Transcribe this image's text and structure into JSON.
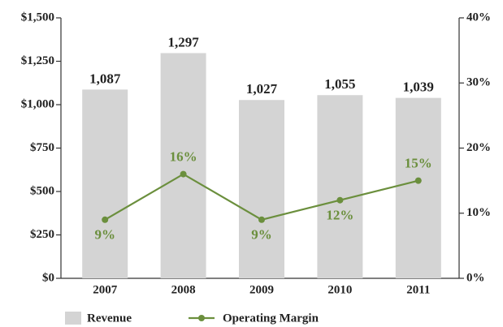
{
  "chart_data": {
    "type": "bar",
    "categories": [
      "2007",
      "2008",
      "2009",
      "2010",
      "2011"
    ],
    "series": [
      {
        "name": "Revenue",
        "color": "#d4d4d4",
        "values": [
          1087,
          1297,
          1027,
          1055,
          1039
        ],
        "value_labels": [
          "1,087",
          "1,297",
          "1,027",
          "1,055",
          "1,039"
        ]
      },
      {
        "name": "Operating Margin",
        "type": "line",
        "axis": "y2",
        "color": "#6b8f3d",
        "values": [
          9,
          16,
          9,
          12,
          15
        ],
        "value_labels": [
          "9%",
          "16%",
          "9%",
          "12%",
          "15%"
        ]
      }
    ],
    "ylim": [
      0,
      1500
    ],
    "yticks": [
      {
        "value": 0,
        "label": "$0"
      },
      {
        "value": 250,
        "label": "$250"
      },
      {
        "value": 500,
        "label": "$500"
      },
      {
        "value": 750,
        "label": "$750"
      },
      {
        "value": 1000,
        "label": "$1,000"
      },
      {
        "value": 1250,
        "label": "$1,250"
      },
      {
        "value": 1500,
        "label": "$1,500"
      }
    ],
    "y2lim": [
      0,
      40
    ],
    "y2ticks": [
      {
        "value": 0,
        "label": "0%"
      },
      {
        "value": 10,
        "label": "10%"
      },
      {
        "value": 20,
        "label": "20%"
      },
      {
        "value": 30,
        "label": "30%"
      },
      {
        "value": 40,
        "label": "40%"
      }
    ],
    "grid": false
  }
}
